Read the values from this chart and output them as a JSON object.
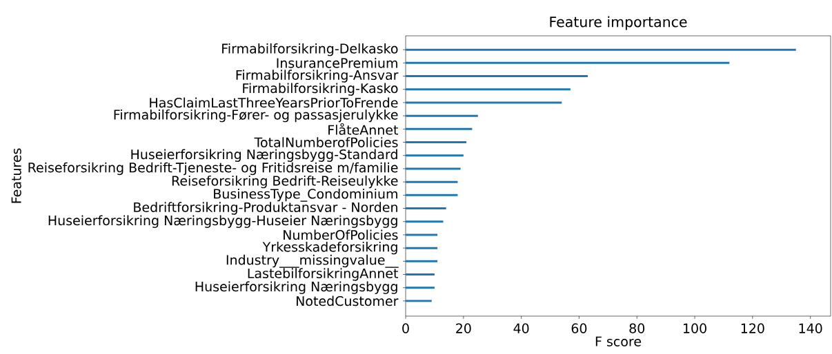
{
  "chart_data": {
    "type": "bar",
    "orientation": "horizontal",
    "title": "Feature importance",
    "xlabel": "F score",
    "ylabel": "Features",
    "color": "#1f77b4",
    "categories": [
      "Firmabilforsikring-Delkasko",
      "InsurancePremium",
      "Firmabilforsikring-Ansvar",
      "Firmabilforsikring-Kasko",
      "HasClaimLastThreeYearsPriorToFrende",
      "Firmabilforsikring-Fører- og passasjerulykke",
      "FlåteAnnet",
      "TotalNumberofPolicies",
      "Huseierforsikring Næringsbygg-Standard",
      "Reiseforsikring Bedrift-Tjeneste- og Fritidsreise m/familie",
      "Reiseforsikring Bedrift-Reiseulykke",
      "BusinessType_Condominium",
      "Bedriftforsikring-Produktansvar - Norden",
      "Huseierforsikring Næringsbygg-Huseier Næringsbygg",
      "NumberOfPolicies",
      "Yrkesskadeforsikring",
      "Industry___missingvalue__",
      "LastebilforsikringAnnet",
      "Huseierforsikring Næringsbygg",
      "NotedCustomer"
    ],
    "values": [
      135,
      112,
      63,
      57,
      54,
      25,
      23,
      21,
      20,
      19,
      18,
      18,
      14,
      13,
      11,
      11,
      11,
      10,
      10,
      9
    ],
    "xlim": [
      0,
      147
    ],
    "xticks": [
      0,
      20,
      40,
      60,
      80,
      100,
      120,
      140
    ],
    "grid": false
  }
}
